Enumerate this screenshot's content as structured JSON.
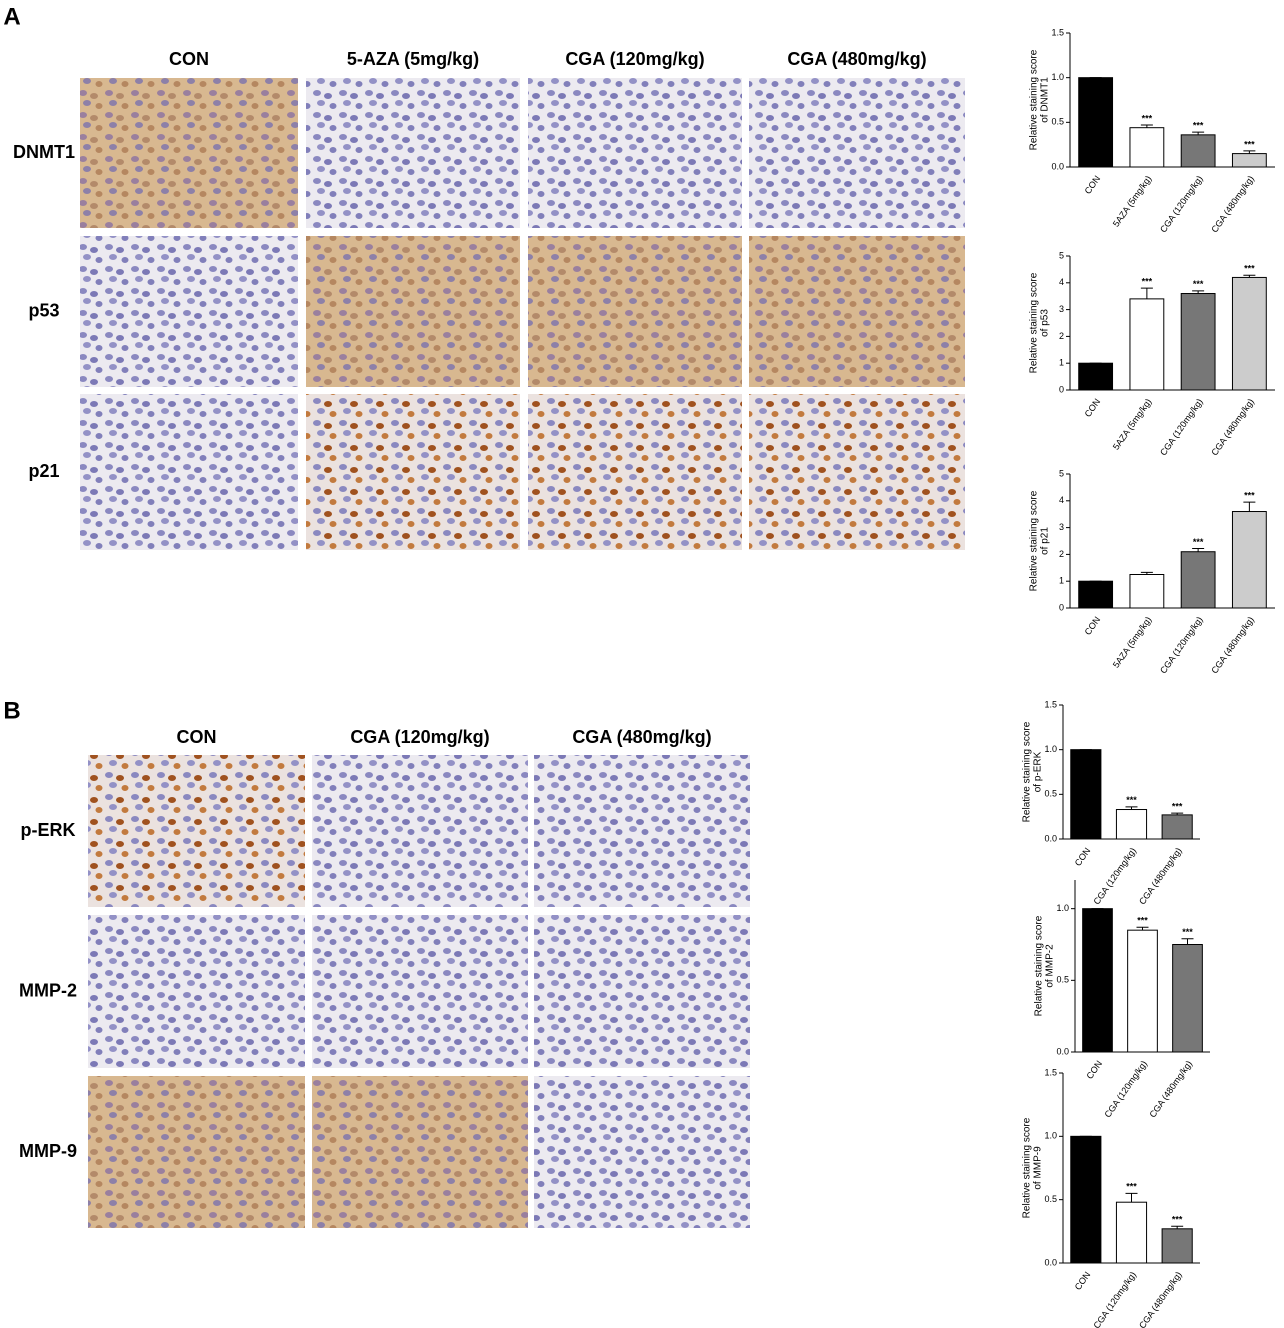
{
  "panels": [
    {
      "letter": "A",
      "columns": [
        "CON",
        "5-AZA (5mg/kg)",
        "CGA (120mg/kg)",
        "CGA (480mg/kg)"
      ],
      "rows": [
        "DNMT1",
        "p53",
        "p21"
      ]
    },
    {
      "letter": "B",
      "columns": [
        "CON",
        "CGA (120mg/kg)",
        "CGA (480mg/kg)"
      ],
      "rows": [
        "p-ERK",
        "MMP-2",
        "MMP-9"
      ]
    }
  ],
  "chart_data": [
    {
      "type": "bar",
      "ylabel": [
        "Relative staining score",
        "of DNMT1"
      ],
      "categories": [
        "CON",
        "5AZA (5mg/kg)",
        "CGA (120mg/kg)",
        "CGA (480mg/kg)"
      ],
      "values": [
        1,
        0.44,
        0.36,
        0.15
      ],
      "errors": [
        0,
        0.03,
        0.03,
        0.03
      ],
      "annotations": [
        null,
        "***",
        "***",
        "***"
      ],
      "colors": [
        "#000000",
        "#ffffff",
        "#777777",
        "#cccccc"
      ],
      "ylim": [
        0,
        1.5
      ],
      "yticks": [
        {
          "value": 0,
          "label": "0.0"
        },
        {
          "value": 0.5,
          "label": "0.5"
        },
        {
          "value": 1,
          "label": "1.0"
        },
        {
          "value": 1.5,
          "label": "1.5"
        }
      ]
    },
    {
      "type": "bar",
      "ylabel": [
        "Relative staining score",
        "of p53"
      ],
      "categories": [
        "CON",
        "5AZA (5mg/kg)",
        "CGA (120mg/kg)",
        "CGA (480mg/kg)"
      ],
      "values": [
        1,
        3.4,
        3.6,
        4.2
      ],
      "errors": [
        0,
        0.4,
        0.1,
        0.08
      ],
      "annotations": [
        null,
        "***",
        "***",
        "***"
      ],
      "colors": [
        "#000000",
        "#ffffff",
        "#777777",
        "#cccccc"
      ],
      "ylim": [
        0,
        5
      ],
      "yticks": [
        0,
        1,
        2,
        3,
        4,
        5
      ]
    },
    {
      "type": "bar",
      "ylabel": [
        "Relative staining score",
        "of p21"
      ],
      "categories": [
        "CON",
        "5AZA (5mg/kg)",
        "CGA (120mg/kg)",
        "CGA (480mg/kg)"
      ],
      "values": [
        1,
        1.25,
        2.1,
        3.6
      ],
      "errors": [
        0,
        0.08,
        0.12,
        0.35
      ],
      "annotations": [
        null,
        null,
        "***",
        "***"
      ],
      "colors": [
        "#000000",
        "#ffffff",
        "#777777",
        "#cccccc"
      ],
      "ylim": [
        0,
        5
      ],
      "yticks": [
        0,
        1,
        2,
        3,
        4,
        5
      ]
    },
    {
      "type": "bar",
      "ylabel": [
        "Relative staining score",
        "of p-ERK"
      ],
      "categories": [
        "CON",
        "CGA (120mg/kg)",
        "CGA (480mg/kg)"
      ],
      "values": [
        1,
        0.33,
        0.27
      ],
      "errors": [
        0,
        0.03,
        0.02
      ],
      "annotations": [
        null,
        "***",
        "***"
      ],
      "colors": [
        "#000000",
        "#ffffff",
        "#777777"
      ],
      "ylim": [
        0,
        1.5
      ],
      "yticks": [
        {
          "value": 0,
          "label": "0.0"
        },
        {
          "value": 0.5,
          "label": "0.5"
        },
        {
          "value": 1,
          "label": "1.0"
        },
        {
          "value": 1.5,
          "label": "1.5"
        }
      ]
    },
    {
      "type": "bar",
      "ylabel": [
        "Relative staining score",
        "of MMP-2"
      ],
      "categories": [
        "CON",
        "CGA (120mg/kg)",
        "CGA (480mg/kg)"
      ],
      "values": [
        1,
        0.85,
        0.75
      ],
      "errors": [
        0,
        0.02,
        0.04
      ],
      "annotations": [
        null,
        "***",
        "***"
      ],
      "colors": [
        "#000000",
        "#ffffff",
        "#777777"
      ],
      "ylim": [
        0,
        1.2
      ],
      "yticks": [
        {
          "value": 0,
          "label": "0.0"
        },
        {
          "value": 0.5,
          "label": "0.5"
        },
        {
          "value": 1,
          "label": "1.0"
        }
      ]
    },
    {
      "type": "bar",
      "ylabel": [
        "Relative staining score",
        "of MMP-9"
      ],
      "categories": [
        "CON",
        "CGA (120mg/kg)",
        "CGA (480mg/kg)"
      ],
      "values": [
        1,
        0.48,
        0.27
      ],
      "errors": [
        0,
        0.07,
        0.02
      ],
      "annotations": [
        null,
        "***",
        "***"
      ],
      "colors": [
        "#000000",
        "#ffffff",
        "#777777"
      ],
      "ylim": [
        0,
        1.5
      ],
      "yticks": [
        {
          "value": 0,
          "label": "0.0"
        },
        {
          "value": 0.5,
          "label": "0.5"
        },
        {
          "value": 1,
          "label": "1.0"
        },
        {
          "value": 1.5,
          "label": "1.5"
        }
      ]
    }
  ]
}
